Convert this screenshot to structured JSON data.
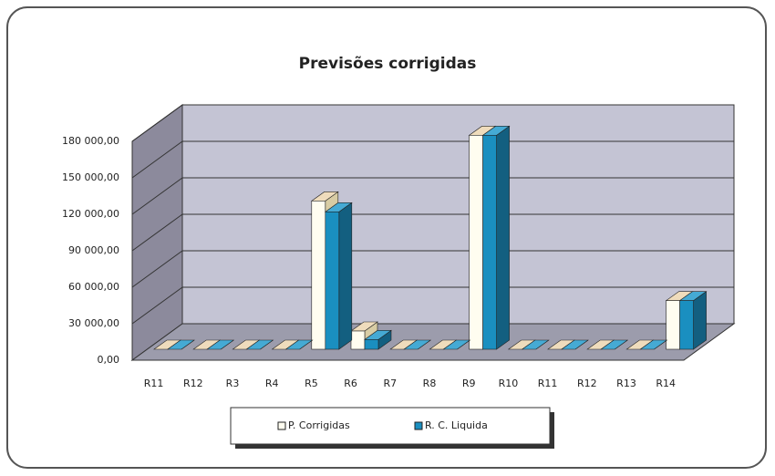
{
  "chart_data": {
    "type": "bar3d",
    "title": "Previsões corrigidas",
    "categories": [
      "R11",
      "R12",
      "R3",
      "R4",
      "R5",
      "R6",
      "R7",
      "R8",
      "R9",
      "R10",
      "R11",
      "R12",
      "R13",
      "R14"
    ],
    "series": [
      {
        "name": "P. Corrigidas",
        "color": "#fffdf0",
        "values": [
          0,
          0,
          0,
          0,
          122000,
          15000,
          0,
          0,
          176000,
          0,
          0,
          0,
          0,
          40000
        ]
      },
      {
        "name": "R. C. Liquida",
        "color": "#1a8fc0",
        "values": [
          0,
          0,
          0,
          0,
          113000,
          8000,
          0,
          0,
          176000,
          0,
          0,
          0,
          0,
          40000
        ]
      }
    ],
    "ylim": [
      0,
      180000
    ],
    "yticks": [
      {
        "value": 0,
        "label": "0,00"
      },
      {
        "value": 30000,
        "label": "30 000,00"
      },
      {
        "value": 60000,
        "label": "60 000,00"
      },
      {
        "value": 90000,
        "label": "90 000,00"
      },
      {
        "value": 120000,
        "label": "120 000,00"
      },
      {
        "value": 150000,
        "label": "150 000,00"
      },
      {
        "value": 180000,
        "label": "180 000,00"
      }
    ],
    "grid": true,
    "legend": "bottom"
  }
}
